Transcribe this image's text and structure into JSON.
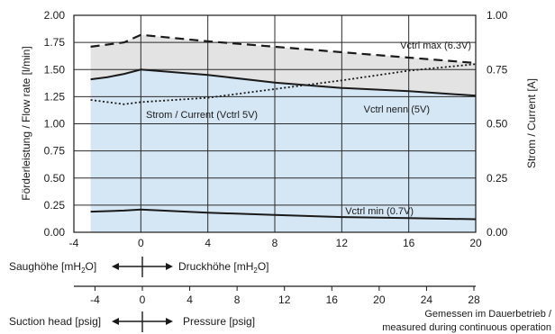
{
  "chart_data": {
    "type": "area",
    "x_unit_top": "mH2O",
    "xlim": [
      -4,
      20
    ],
    "x_ticks": [
      -4,
      0,
      4,
      8,
      12,
      16,
      20
    ],
    "ylim_left": [
      0,
      2
    ],
    "y_ticks_left": [
      "0.00",
      "0.25",
      "0.50",
      "0.75",
      "1.00",
      "1.25",
      "1.50",
      "1.75",
      "2.00"
    ],
    "ylim_right": [
      0,
      1
    ],
    "y_ticks_right": [
      "0.00",
      "0.25",
      "0.50",
      "0.75",
      "1.00"
    ],
    "ylabel_left": "Förderleistung / Flow rate [l/min]",
    "ylabel_right": "Strom / Current [A]",
    "grid": true,
    "series": [
      {
        "name": "Vctrl max (6.3V)",
        "axis": "left",
        "style": "dashed",
        "x": [
          -3,
          -1,
          0,
          4,
          8,
          12,
          16,
          20
        ],
        "y": [
          1.71,
          1.75,
          1.82,
          1.76,
          1.71,
          1.66,
          1.61,
          1.56
        ]
      },
      {
        "name": "Vctrl nenn (5V)",
        "axis": "left",
        "style": "solid",
        "x": [
          -3,
          -2,
          -1,
          0,
          4,
          8,
          12,
          16,
          20
        ],
        "y": [
          1.41,
          1.43,
          1.46,
          1.5,
          1.45,
          1.38,
          1.33,
          1.3,
          1.26
        ]
      },
      {
        "name": "Vctrl min (0.7V)",
        "axis": "left",
        "style": "solid",
        "x": [
          -3,
          -1,
          0,
          4,
          8,
          12,
          16,
          20
        ],
        "y": [
          0.19,
          0.2,
          0.21,
          0.18,
          0.16,
          0.14,
          0.13,
          0.12
        ]
      },
      {
        "name": "Strom / Current (Vctrl 5V)",
        "axis": "right",
        "style": "dotted",
        "x": [
          -3,
          -2,
          -1,
          0,
          2,
          4,
          8,
          12,
          16,
          20
        ],
        "y": [
          0.61,
          0.6,
          0.59,
          0.6,
          0.61,
          0.62,
          0.66,
          0.7,
          0.745,
          0.775
        ]
      }
    ],
    "labels": {
      "max": "Vctrl max (6.3V)",
      "nenn": "Vctrl nenn (5V)",
      "min": "Vctrl min (0.7V)",
      "current": "Strom / Current (Vctrl 5V)"
    },
    "colors": {
      "gray_band": "#e3e3e3",
      "blue_band": "#d5e6f4",
      "lines": "#1a1a1a"
    }
  },
  "axis_row_top": {
    "left_text": "Saughöhe [mH",
    "left_sub": "2",
    "left_tail": "O]",
    "right_text": "Druckhöhe [mH",
    "right_sub": "2",
    "right_tail": "O]"
  },
  "axis_row_bottom": {
    "unit": "psig",
    "ticks": [
      -4,
      0,
      4,
      8,
      12,
      16,
      20,
      24,
      28
    ],
    "left_text": "Suction head [psig]",
    "right_text": "Pressure [psig]"
  },
  "note": {
    "line1": "Gemessen im Dauerbetrieb /",
    "line2": "measured during continuous operation"
  }
}
